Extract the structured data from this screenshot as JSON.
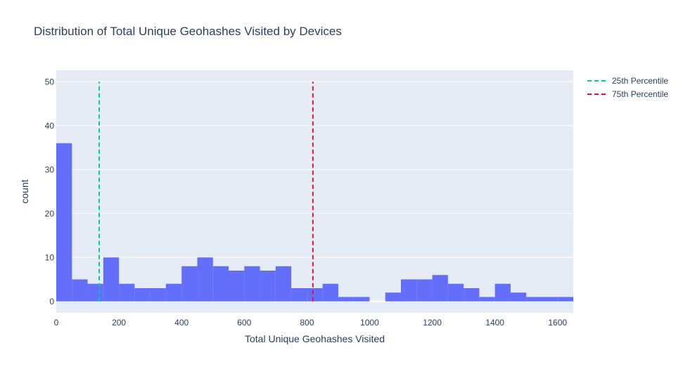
{
  "chart_data": {
    "type": "bar",
    "title": "Distribution of Total Unique Geohashes Visited by Devices",
    "xlabel": "Total Unique Geohashes Visited",
    "ylabel": "count",
    "xlim": [
      0,
      1650
    ],
    "ylim": [
      -2.6,
      52.6
    ],
    "bin_width": 50,
    "bins": [
      {
        "x0": 0,
        "x1": 50,
        "count": 36
      },
      {
        "x0": 50,
        "x1": 100,
        "count": 5
      },
      {
        "x0": 100,
        "x1": 150,
        "count": 4
      },
      {
        "x0": 150,
        "x1": 200,
        "count": 10
      },
      {
        "x0": 200,
        "x1": 250,
        "count": 4
      },
      {
        "x0": 250,
        "x1": 300,
        "count": 3
      },
      {
        "x0": 300,
        "x1": 350,
        "count": 3
      },
      {
        "x0": 350,
        "x1": 400,
        "count": 4
      },
      {
        "x0": 400,
        "x1": 450,
        "count": 8
      },
      {
        "x0": 450,
        "x1": 500,
        "count": 10
      },
      {
        "x0": 500,
        "x1": 550,
        "count": 8
      },
      {
        "x0": 550,
        "x1": 600,
        "count": 7
      },
      {
        "x0": 600,
        "x1": 650,
        "count": 8
      },
      {
        "x0": 650,
        "x1": 700,
        "count": 7
      },
      {
        "x0": 700,
        "x1": 750,
        "count": 8
      },
      {
        "x0": 750,
        "x1": 800,
        "count": 3
      },
      {
        "x0": 800,
        "x1": 850,
        "count": 3
      },
      {
        "x0": 850,
        "x1": 900,
        "count": 4
      },
      {
        "x0": 900,
        "x1": 950,
        "count": 1
      },
      {
        "x0": 950,
        "x1": 1000,
        "count": 1
      },
      {
        "x0": 1000,
        "x1": 1050,
        "count": 0
      },
      {
        "x0": 1050,
        "x1": 1100,
        "count": 2
      },
      {
        "x0": 1100,
        "x1": 1150,
        "count": 5
      },
      {
        "x0": 1150,
        "x1": 1200,
        "count": 5
      },
      {
        "x0": 1200,
        "x1": 1250,
        "count": 6
      },
      {
        "x0": 1250,
        "x1": 1300,
        "count": 4
      },
      {
        "x0": 1300,
        "x1": 1350,
        "count": 3
      },
      {
        "x0": 1350,
        "x1": 1400,
        "count": 1
      },
      {
        "x0": 1400,
        "x1": 1450,
        "count": 4
      },
      {
        "x0": 1450,
        "x1": 1500,
        "count": 2
      },
      {
        "x0": 1500,
        "x1": 1550,
        "count": 1
      },
      {
        "x0": 1550,
        "x1": 1600,
        "count": 1
      },
      {
        "x0": 1600,
        "x1": 1650,
        "count": 1
      }
    ],
    "x_ticks": [
      0,
      200,
      400,
      600,
      800,
      1000,
      1200,
      1400,
      1600
    ],
    "y_ticks": [
      0,
      10,
      20,
      30,
      40,
      50
    ],
    "reference_lines": [
      {
        "name": "25th Percentile",
        "x": 137,
        "y_range": [
          0,
          50
        ],
        "color": "#00cc96",
        "dash": "dash"
      },
      {
        "name": "75th Percentile",
        "x": 819,
        "y_range": [
          0,
          50
        ],
        "color": "#dc143c",
        "dash": "dash"
      }
    ],
    "bar_color": "#636efa",
    "plot_background": "#e5ecf6",
    "grid": true,
    "legend_position": "top-right"
  }
}
